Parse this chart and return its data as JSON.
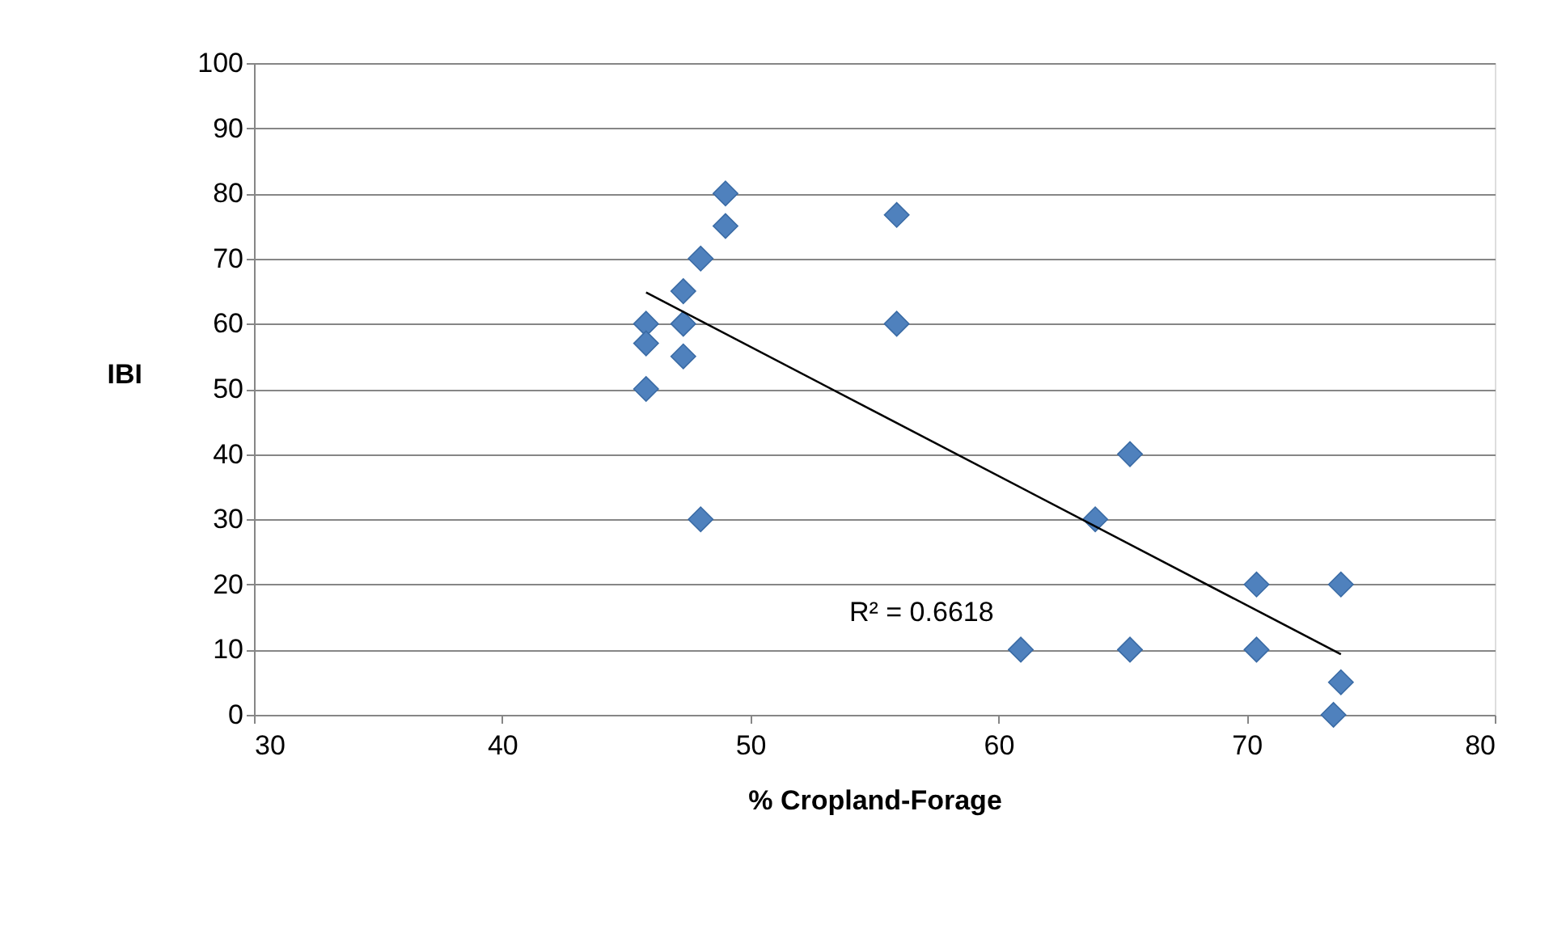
{
  "chart_data": {
    "type": "scatter",
    "xlabel": "% Cropland-Forage",
    "ylabel": "IBI",
    "xlim": [
      30,
      80
    ],
    "xticks": [
      30,
      40,
      50,
      60,
      70,
      80
    ],
    "ylim": [
      0,
      100
    ],
    "yticks": [
      0,
      10,
      20,
      30,
      40,
      50,
      60,
      70,
      80,
      90,
      100
    ],
    "grid": "y",
    "marker": "diamond",
    "series": [
      {
        "type": "scatter",
        "color": "#4f81bd",
        "x": [
          49.0,
          49.0,
          48.0,
          47.3,
          45.8,
          45.8,
          47.3,
          47.3,
          45.8,
          48.0,
          55.9,
          55.9,
          65.3,
          63.9,
          70.4,
          73.8,
          60.9,
          65.3,
          70.4,
          73.8,
          73.5
        ],
        "values": [
          80,
          75,
          70,
          65,
          60,
          57,
          60,
          55,
          50,
          30,
          76.7,
          60,
          40,
          30,
          20,
          20,
          10,
          10,
          10,
          5,
          0
        ]
      },
      {
        "type": "line",
        "color": "#000000",
        "marker": "none",
        "x": [
          45.8,
          73.8
        ],
        "values": [
          64.8,
          9.3
        ]
      }
    ],
    "annotations": [
      "R² = 0.6618"
    ]
  }
}
